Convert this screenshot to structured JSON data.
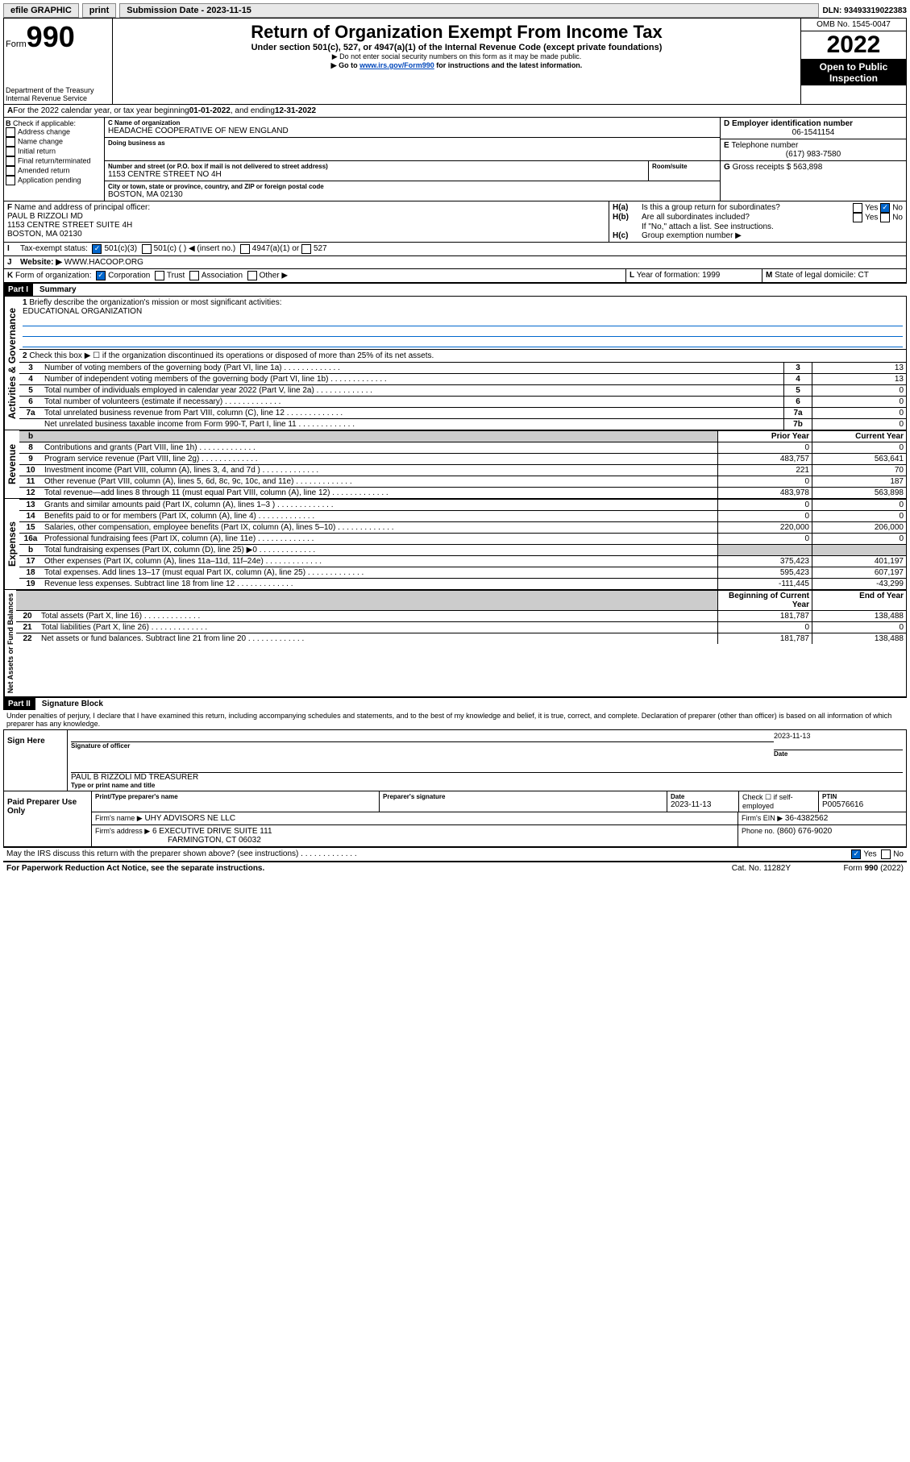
{
  "topbar": {
    "efile": "efile GRAPHIC",
    "print": "print",
    "sub_label": "Submission Date - 2023-11-15",
    "dln_label": "DLN: 93493319022383"
  },
  "header": {
    "form": "Form",
    "form_no": "990",
    "dept": "Department of the Treasury",
    "irs": "Internal Revenue Service",
    "title": "Return of Organization Exempt From Income Tax",
    "sub1": "Under section 501(c), 527, or 4947(a)(1) of the Internal Revenue Code (except private foundations)",
    "sub2": "▶ Do not enter social security numbers on this form as it may be made public.",
    "sub3_pre": "▶ Go to ",
    "sub3_link": "www.irs.gov/Form990",
    "sub3_post": " for instructions and the latest information.",
    "omb": "OMB No. 1545-0047",
    "year": "2022",
    "open": "Open to Public Inspection"
  },
  "A": {
    "text_pre": "For the 2022 calendar year, or tax year beginning ",
    "begin": "01-01-2022",
    "mid": " , and ending ",
    "end": "12-31-2022"
  },
  "B": {
    "label": "Check if applicable:",
    "opts": [
      "Address change",
      "Name change",
      "Initial return",
      "Final return/terminated",
      "Amended return",
      "Application pending"
    ]
  },
  "C": {
    "name_lbl": "Name of organization",
    "name": "HEADACHE COOPERATIVE OF NEW ENGLAND",
    "dba_lbl": "Doing business as",
    "street_lbl": "Number and street (or P.O. box if mail is not delivered to street address)",
    "room_lbl": "Room/suite",
    "street": "1153 CENTRE STREET NO 4H",
    "city_lbl": "City or town, state or province, country, and ZIP or foreign postal code",
    "city": "BOSTON, MA  02130"
  },
  "D": {
    "lbl": "Employer identification number",
    "val": "06-1541154"
  },
  "E": {
    "lbl": "Telephone number",
    "val": "(617) 983-7580"
  },
  "G": {
    "lbl": "Gross receipts $",
    "val": "563,898"
  },
  "F": {
    "lbl": "Name and address of principal officer:",
    "name": "PAUL B RIZZOLI MD",
    "addr1": "1153 CENTRE STREET SUITE 4H",
    "addr2": "BOSTON, MA  02130"
  },
  "H": {
    "ha": "Is this a group return for subordinates?",
    "hb": "Are all subordinates included?",
    "hnote": "If \"No,\" attach a list. See instructions.",
    "hc": "Group exemption number ▶",
    "yes": "Yes",
    "no": "No"
  },
  "I": {
    "lbl": "Tax-exempt status:",
    "o1": "501(c)(3)",
    "o2": "501(c) (  ) ◀ (insert no.)",
    "o3": "4947(a)(1) or",
    "o4": "527"
  },
  "J": {
    "lbl": "Website: ▶",
    "val": "WWW.HACOOP.ORG"
  },
  "K": {
    "lbl": "Form of organization:",
    "o1": "Corporation",
    "o2": "Trust",
    "o3": "Association",
    "o4": "Other ▶"
  },
  "L": {
    "lbl": "Year of formation:",
    "val": "1999"
  },
  "M": {
    "lbl": "State of legal domicile:",
    "val": "CT"
  },
  "part1": {
    "hdr": "Part I",
    "title": "Summary",
    "l1": "Briefly describe the organization's mission or most significant activities:",
    "l1v": "EDUCATIONAL ORGANIZATION",
    "l2": "Check this box ▶ ☐ if the organization discontinued its operations or disposed of more than 25% of its net assets.",
    "rows_gov": [
      {
        "n": "3",
        "t": "Number of voting members of the governing body (Part VI, line 1a)",
        "r": "3",
        "v": "13"
      },
      {
        "n": "4",
        "t": "Number of independent voting members of the governing body (Part VI, line 1b)",
        "r": "4",
        "v": "13"
      },
      {
        "n": "5",
        "t": "Total number of individuals employed in calendar year 2022 (Part V, line 2a)",
        "r": "5",
        "v": "0"
      },
      {
        "n": "6",
        "t": "Total number of volunteers (estimate if necessary)",
        "r": "6",
        "v": "0"
      },
      {
        "n": "7a",
        "t": "Total unrelated business revenue from Part VIII, column (C), line 12",
        "r": "7a",
        "v": "0"
      },
      {
        "n": "",
        "t": "Net unrelated business taxable income from Form 990-T, Part I, line 11",
        "r": "7b",
        "v": "0"
      }
    ],
    "hdr_py": "Prior Year",
    "hdr_cy": "Current Year",
    "rows_rev": [
      {
        "n": "8",
        "t": "Contributions and grants (Part VIII, line 1h)",
        "py": "0",
        "cy": "0"
      },
      {
        "n": "9",
        "t": "Program service revenue (Part VIII, line 2g)",
        "py": "483,757",
        "cy": "563,641"
      },
      {
        "n": "10",
        "t": "Investment income (Part VIII, column (A), lines 3, 4, and 7d )",
        "py": "221",
        "cy": "70"
      },
      {
        "n": "11",
        "t": "Other revenue (Part VIII, column (A), lines 5, 6d, 8c, 9c, 10c, and 11e)",
        "py": "0",
        "cy": "187"
      },
      {
        "n": "12",
        "t": "Total revenue—add lines 8 through 11 (must equal Part VIII, column (A), line 12)",
        "py": "483,978",
        "cy": "563,898"
      }
    ],
    "rows_exp": [
      {
        "n": "13",
        "t": "Grants and similar amounts paid (Part IX, column (A), lines 1–3 )",
        "py": "0",
        "cy": "0"
      },
      {
        "n": "14",
        "t": "Benefits paid to or for members (Part IX, column (A), line 4)",
        "py": "0",
        "cy": "0"
      },
      {
        "n": "15",
        "t": "Salaries, other compensation, employee benefits (Part IX, column (A), lines 5–10)",
        "py": "220,000",
        "cy": "206,000"
      },
      {
        "n": "16a",
        "t": "Professional fundraising fees (Part IX, column (A), line 11e)",
        "py": "0",
        "cy": "0"
      },
      {
        "n": "b",
        "t": "Total fundraising expenses (Part IX, column (D), line 25) ▶0",
        "py": "",
        "cy": "",
        "shade": true
      },
      {
        "n": "17",
        "t": "Other expenses (Part IX, column (A), lines 11a–11d, 11f–24e)",
        "py": "375,423",
        "cy": "401,197"
      },
      {
        "n": "18",
        "t": "Total expenses. Add lines 13–17 (must equal Part IX, column (A), line 25)",
        "py": "595,423",
        "cy": "607,197"
      },
      {
        "n": "19",
        "t": "Revenue less expenses. Subtract line 18 from line 12",
        "py": "-111,445",
        "cy": "-43,299"
      }
    ],
    "hdr_bcy": "Beginning of Current Year",
    "hdr_eoy": "End of Year",
    "rows_net": [
      {
        "n": "20",
        "t": "Total assets (Part X, line 16)",
        "py": "181,787",
        "cy": "138,488"
      },
      {
        "n": "21",
        "t": "Total liabilities (Part X, line 26)",
        "py": "0",
        "cy": "0"
      },
      {
        "n": "22",
        "t": "Net assets or fund balances. Subtract line 21 from line 20",
        "py": "181,787",
        "cy": "138,488"
      }
    ],
    "tab_gov": "Activities & Governance",
    "tab_rev": "Revenue",
    "tab_exp": "Expenses",
    "tab_net": "Net Assets or Fund Balances"
  },
  "part2": {
    "hdr": "Part II",
    "title": "Signature Block",
    "decl": "Under penalties of perjury, I declare that I have examined this return, including accompanying schedules and statements, and to the best of my knowledge and belief, it is true, correct, and complete. Declaration of preparer (other than officer) is based on all information of which preparer has any knowledge.",
    "sign_here": "Sign Here",
    "sig_officer": "Signature of officer",
    "date": "Date",
    "date_val": "2023-11-13",
    "name_title": "PAUL B RIZZOLI MD TREASURER",
    "type_lbl": "Type or print name and title",
    "paid": "Paid Preparer Use Only",
    "pt_name": "Print/Type preparer's name",
    "pt_sig": "Preparer's signature",
    "pt_date": "Date",
    "pt_date_v": "2023-11-13",
    "pt_chk": "Check ☐ if self-employed",
    "ptin_lbl": "PTIN",
    "ptin": "P00576616",
    "firm_name_lbl": "Firm's name   ▶",
    "firm_name": "UHY ADVISORS NE LLC",
    "firm_ein_lbl": "Firm's EIN ▶",
    "firm_ein": "36-4382562",
    "firm_addr_lbl": "Firm's address ▶",
    "firm_addr1": "6 EXECUTIVE DRIVE SUITE 111",
    "firm_addr2": "FARMINGTON, CT  06032",
    "phone_lbl": "Phone no.",
    "phone": "(860) 676-9020",
    "discuss": "May the IRS discuss this return with the preparer shown above? (see instructions)"
  },
  "footer": {
    "left": "For Paperwork Reduction Act Notice, see the separate instructions.",
    "mid": "Cat. No. 11282Y",
    "right": "Form 990 (2022)"
  }
}
